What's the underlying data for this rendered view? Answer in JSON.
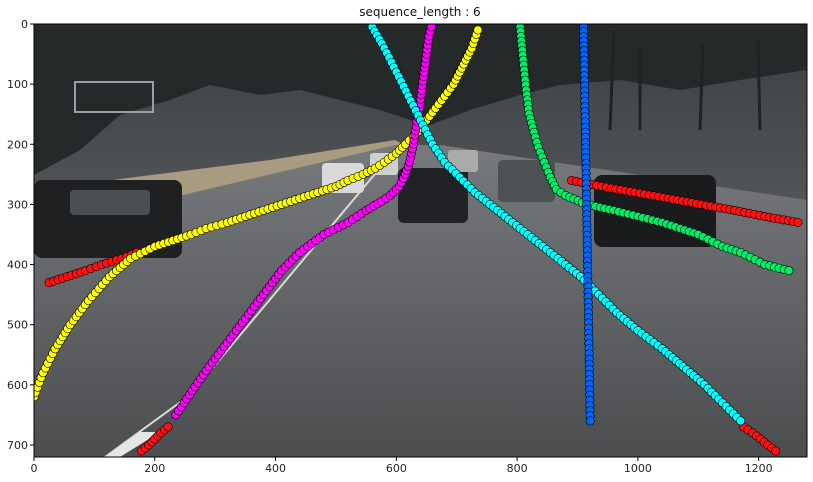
{
  "chart_data": {
    "type": "scatter",
    "title": "sequence_length : 6",
    "xlabel": "",
    "ylabel": "",
    "xlim": [
      0,
      1280
    ],
    "ylim": [
      720,
      0
    ],
    "x_ticks": [
      0,
      200,
      400,
      600,
      800,
      1000,
      1200
    ],
    "y_ticks": [
      0,
      100,
      200,
      300,
      400,
      500,
      600,
      700
    ],
    "grid": false,
    "legend": false,
    "background": "dashcam photo of a multi-lane highway with cars and trees",
    "series": [
      {
        "color": "#ff1111",
        "points": [
          [
            178,
            710
          ],
          [
            190,
            700
          ],
          [
            200,
            690
          ],
          [
            210,
            680
          ],
          [
            222,
            670
          ]
        ]
      },
      {
        "color": "#ff1111",
        "points": [
          [
            25,
            430
          ],
          [
            55,
            420
          ],
          [
            85,
            410
          ],
          [
            112,
            400
          ],
          [
            145,
            390
          ],
          [
            170,
            380
          ]
        ]
      },
      {
        "color": "#ff1111",
        "points": [
          [
            890,
            260
          ],
          [
            940,
            270
          ],
          [
            995,
            280
          ],
          [
            1050,
            290
          ],
          [
            1105,
            300
          ],
          [
            1160,
            310
          ],
          [
            1210,
            320
          ],
          [
            1265,
            330
          ]
        ]
      },
      {
        "color": "#ff1111",
        "points": [
          [
            1175,
            670
          ],
          [
            1190,
            680
          ],
          [
            1203,
            690
          ],
          [
            1215,
            700
          ],
          [
            1228,
            710
          ]
        ]
      },
      {
        "color": "#ffff00",
        "points": [
          [
            0,
            620
          ],
          [
            15,
            580
          ],
          [
            35,
            540
          ],
          [
            60,
            500
          ],
          [
            90,
            460
          ],
          [
            125,
            420
          ],
          [
            160,
            390
          ],
          [
            200,
            370
          ],
          [
            230,
            360
          ],
          [
            260,
            350
          ],
          [
            285,
            340
          ],
          [
            320,
            330
          ],
          [
            350,
            320
          ],
          [
            380,
            310
          ],
          [
            410,
            300
          ],
          [
            440,
            290
          ],
          [
            470,
            280
          ],
          [
            500,
            270
          ],
          [
            520,
            260
          ],
          [
            545,
            250
          ],
          [
            565,
            240
          ],
          [
            580,
            230
          ],
          [
            600,
            215
          ],
          [
            615,
            200
          ],
          [
            635,
            180
          ],
          [
            650,
            160
          ],
          [
            665,
            140
          ],
          [
            680,
            120
          ],
          [
            695,
            100
          ],
          [
            705,
            80
          ],
          [
            715,
            60
          ],
          [
            725,
            40
          ],
          [
            735,
            10
          ]
        ]
      },
      {
        "color": "#ff00ff",
        "points": [
          [
            235,
            650
          ],
          [
            262,
            610
          ],
          [
            290,
            570
          ],
          [
            320,
            530
          ],
          [
            350,
            490
          ],
          [
            380,
            450
          ],
          [
            410,
            410
          ],
          [
            440,
            380
          ],
          [
            480,
            350
          ],
          [
            520,
            330
          ],
          [
            550,
            310
          ],
          [
            575,
            295
          ],
          [
            590,
            285
          ],
          [
            605,
            270
          ],
          [
            615,
            250
          ],
          [
            622,
            230
          ],
          [
            628,
            200
          ],
          [
            633,
            170
          ],
          [
            638,
            140
          ],
          [
            642,
            110
          ],
          [
            646,
            80
          ],
          [
            650,
            50
          ],
          [
            654,
            20
          ],
          [
            658,
            5
          ]
        ]
      },
      {
        "color": "#00ffff",
        "points": [
          [
            560,
            5
          ],
          [
            580,
            40
          ],
          [
            600,
            80
          ],
          [
            620,
            120
          ],
          [
            640,
            160
          ],
          [
            660,
            200
          ],
          [
            680,
            230
          ],
          [
            705,
            255
          ],
          [
            730,
            280
          ],
          [
            755,
            300
          ],
          [
            780,
            320
          ],
          [
            805,
            340
          ],
          [
            830,
            360
          ],
          [
            855,
            380
          ],
          [
            880,
            400
          ],
          [
            905,
            420
          ],
          [
            935,
            450
          ],
          [
            965,
            480
          ],
          [
            1000,
            510
          ],
          [
            1040,
            540
          ],
          [
            1075,
            570
          ],
          [
            1110,
            600
          ],
          [
            1140,
            630
          ],
          [
            1170,
            660
          ]
        ]
      },
      {
        "color": "#00ee66",
        "points": [
          [
            805,
            5
          ],
          [
            810,
            60
          ],
          [
            815,
            110
          ],
          [
            820,
            150
          ],
          [
            828,
            180
          ],
          [
            835,
            205
          ],
          [
            845,
            230
          ],
          [
            855,
            255
          ],
          [
            865,
            275
          ],
          [
            880,
            285
          ],
          [
            915,
            300
          ],
          [
            960,
            310
          ],
          [
            1000,
            320
          ],
          [
            1040,
            330
          ],
          [
            1070,
            340
          ],
          [
            1100,
            350
          ],
          [
            1140,
            370
          ],
          [
            1170,
            380
          ],
          [
            1210,
            400
          ],
          [
            1250,
            410
          ]
        ]
      },
      {
        "color": "#0066ff",
        "points": [
          [
            910,
            5
          ],
          [
            911,
            60
          ],
          [
            912,
            120
          ],
          [
            913,
            180
          ],
          [
            914,
            240
          ],
          [
            915,
            300
          ],
          [
            916,
            360
          ],
          [
            917,
            420
          ],
          [
            918,
            480
          ],
          [
            919,
            540
          ],
          [
            920,
            600
          ],
          [
            921,
            660
          ]
        ]
      }
    ]
  }
}
